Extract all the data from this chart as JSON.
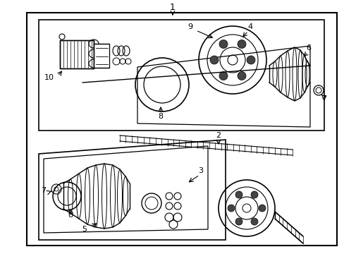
{
  "bg_color": "#ffffff",
  "line_color": "#000000",
  "figsize": [
    4.89,
    3.6
  ],
  "dpi": 100,
  "lw_main": 1.0,
  "lw_thin": 0.7,
  "lw_thick": 1.4
}
